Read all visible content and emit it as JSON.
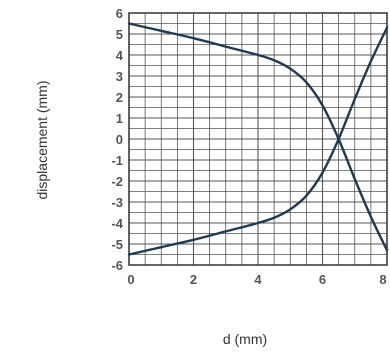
{
  "chart_data": {
    "type": "line",
    "xlabel": "d (mm)",
    "ylabel": "displacement  (mm)",
    "xlim": [
      0,
      8
    ],
    "ylim": [
      -6,
      6
    ],
    "x_ticks": [
      0,
      2,
      4,
      6,
      8
    ],
    "y_ticks": [
      6,
      5,
      4,
      3,
      2,
      1,
      0,
      -1,
      -2,
      -3,
      -4,
      -5,
      -6
    ],
    "grid": true,
    "x_minor_step": 0.5,
    "y_minor_step": 0.5,
    "series": [
      {
        "x": [
          0,
          1,
          2,
          3,
          4,
          4.5,
          5,
          5.5,
          6,
          6.5,
          7,
          7.5,
          8
        ],
        "y": [
          5.5,
          5.15,
          4.8,
          4.4,
          4.0,
          3.75,
          3.35,
          2.7,
          1.6,
          0.0,
          -1.9,
          -3.7,
          -5.3
        ]
      },
      {
        "x": [
          0,
          1,
          2,
          3,
          4,
          4.5,
          5,
          5.5,
          6,
          6.5,
          7,
          7.5,
          8
        ],
        "y": [
          -5.5,
          -5.15,
          -4.8,
          -4.4,
          -4.0,
          -3.75,
          -3.35,
          -2.7,
          -1.6,
          0.0,
          1.9,
          3.7,
          5.3
        ]
      }
    ],
    "colors": {
      "line": "#1f3a52",
      "grid": "#555555",
      "frame": "#333333",
      "text": "#555555"
    }
  }
}
